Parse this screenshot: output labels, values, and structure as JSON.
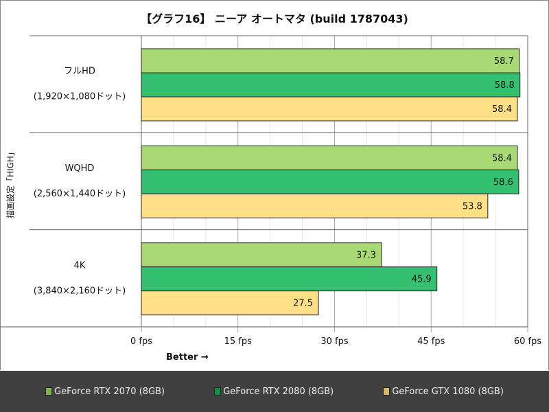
{
  "chart_data": {
    "type": "bar",
    "orientation": "horizontal",
    "title": "【グラフ16】 ニーア オートマタ (build 1787043)",
    "ylabel": "描画設定「HIGH」",
    "xlabel": "Better →",
    "xlim": [
      0,
      60
    ],
    "ticks": [
      "0 fps",
      "15 fps",
      "30 fps",
      "45 fps",
      "60 fps"
    ],
    "tick_values": [
      0,
      15,
      30,
      45,
      60
    ],
    "grid": true,
    "legend_position": "bottom",
    "categories": [
      {
        "name": "フルHD",
        "sub": "(1,920×1,080ドット)"
      },
      {
        "name": "WQHD",
        "sub": "(2,560×1,440ドット)"
      },
      {
        "name": "4K",
        "sub": "(3,840×2,160ドット)"
      }
    ],
    "series": [
      {
        "name": "GeForce RTX 2070 (8GB)",
        "color": "#a8d974",
        "legend_color": "#7ab648",
        "values": [
          58.7,
          58.4,
          37.3
        ]
      },
      {
        "name": "GeForce RTX 2080 (8GB)",
        "color": "#34c070",
        "legend_color": "#109040",
        "values": [
          58.8,
          58.6,
          45.9
        ]
      },
      {
        "name": "GeForce GTX 1080 (8GB)",
        "color": "#fddf86",
        "legend_color": "#d8b860",
        "values": [
          58.4,
          53.8,
          27.5
        ]
      }
    ]
  }
}
